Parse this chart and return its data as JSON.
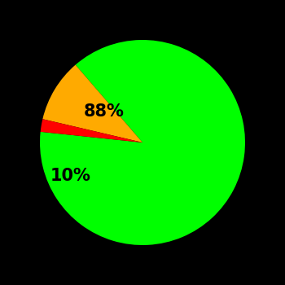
{
  "slices": [
    88,
    10,
    2
  ],
  "colors": [
    "#00ff00",
    "#ffaa00",
    "#ff0000"
  ],
  "labels": [
    "88%",
    "10%",
    ""
  ],
  "background_color": "#000000",
  "label_fontsize": 15,
  "label_fontweight": "bold",
  "startangle": 174,
  "figsize": [
    3.5,
    3.5
  ],
  "dpi": 100
}
